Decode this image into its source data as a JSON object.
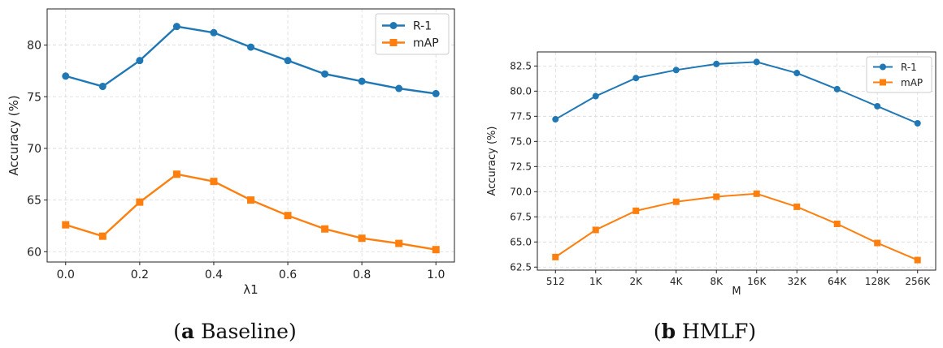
{
  "colors": {
    "r1": "#1f77b4",
    "map": "#ff7f0e"
  },
  "chart_data": [
    {
      "type": "line",
      "caption": {
        "letter": "a",
        "text": " Baseline"
      },
      "xlabel": "λ1",
      "ylabel": "Accuracy (%)",
      "x": [
        0.0,
        0.1,
        0.2,
        0.3,
        0.4,
        0.5,
        0.6,
        0.7,
        0.8,
        0.9,
        1.0
      ],
      "xlim": [
        -0.05,
        1.05
      ],
      "ylim": [
        59,
        83.5
      ],
      "xticks": [
        0.0,
        0.2,
        0.4,
        0.6,
        0.8,
        1.0
      ],
      "xtick_labels": [
        "0.0",
        "0.2",
        "0.4",
        "0.6",
        "0.8",
        "1.0"
      ],
      "yticks": [
        60,
        65,
        70,
        75,
        80
      ],
      "ytick_labels": [
        "60",
        "65",
        "70",
        "75",
        "80"
      ],
      "grid": true,
      "legend": "top-right",
      "series": [
        {
          "name": "R-1",
          "marker": "circle",
          "values": [
            77.0,
            76.0,
            78.5,
            81.8,
            81.2,
            79.8,
            78.5,
            77.2,
            76.5,
            75.8,
            75.3
          ]
        },
        {
          "name": "mAP",
          "marker": "square",
          "values": [
            62.6,
            61.5,
            64.8,
            67.5,
            66.8,
            65.0,
            63.5,
            62.2,
            61.3,
            60.8,
            60.2
          ]
        }
      ]
    },
    {
      "type": "line",
      "caption": {
        "letter": "b",
        "text": " HMLF"
      },
      "xlabel": "M",
      "ylabel": "Accuracy (%)",
      "categories": [
        "512",
        "1K",
        "2K",
        "4K",
        "8K",
        "16K",
        "32K",
        "64K",
        "128K",
        "256K"
      ],
      "xlim": [
        -0.45,
        9.45
      ],
      "ylim": [
        62.2,
        83.9
      ],
      "yticks": [
        62.5,
        65.0,
        67.5,
        70.0,
        72.5,
        75.0,
        77.5,
        80.0,
        82.5
      ],
      "ytick_labels": [
        "62.5",
        "65.0",
        "67.5",
        "70.0",
        "72.5",
        "75.0",
        "77.5",
        "80.0",
        "82.5"
      ],
      "grid": true,
      "legend": "top-right",
      "series": [
        {
          "name": "R-1",
          "marker": "circle",
          "values": [
            77.2,
            79.5,
            81.3,
            82.1,
            82.7,
            82.9,
            81.8,
            80.2,
            78.5,
            76.8
          ]
        },
        {
          "name": "mAP",
          "marker": "square",
          "values": [
            63.5,
            66.2,
            68.1,
            69.0,
            69.5,
            69.8,
            68.5,
            66.8,
            64.9,
            63.2
          ]
        }
      ]
    }
  ]
}
